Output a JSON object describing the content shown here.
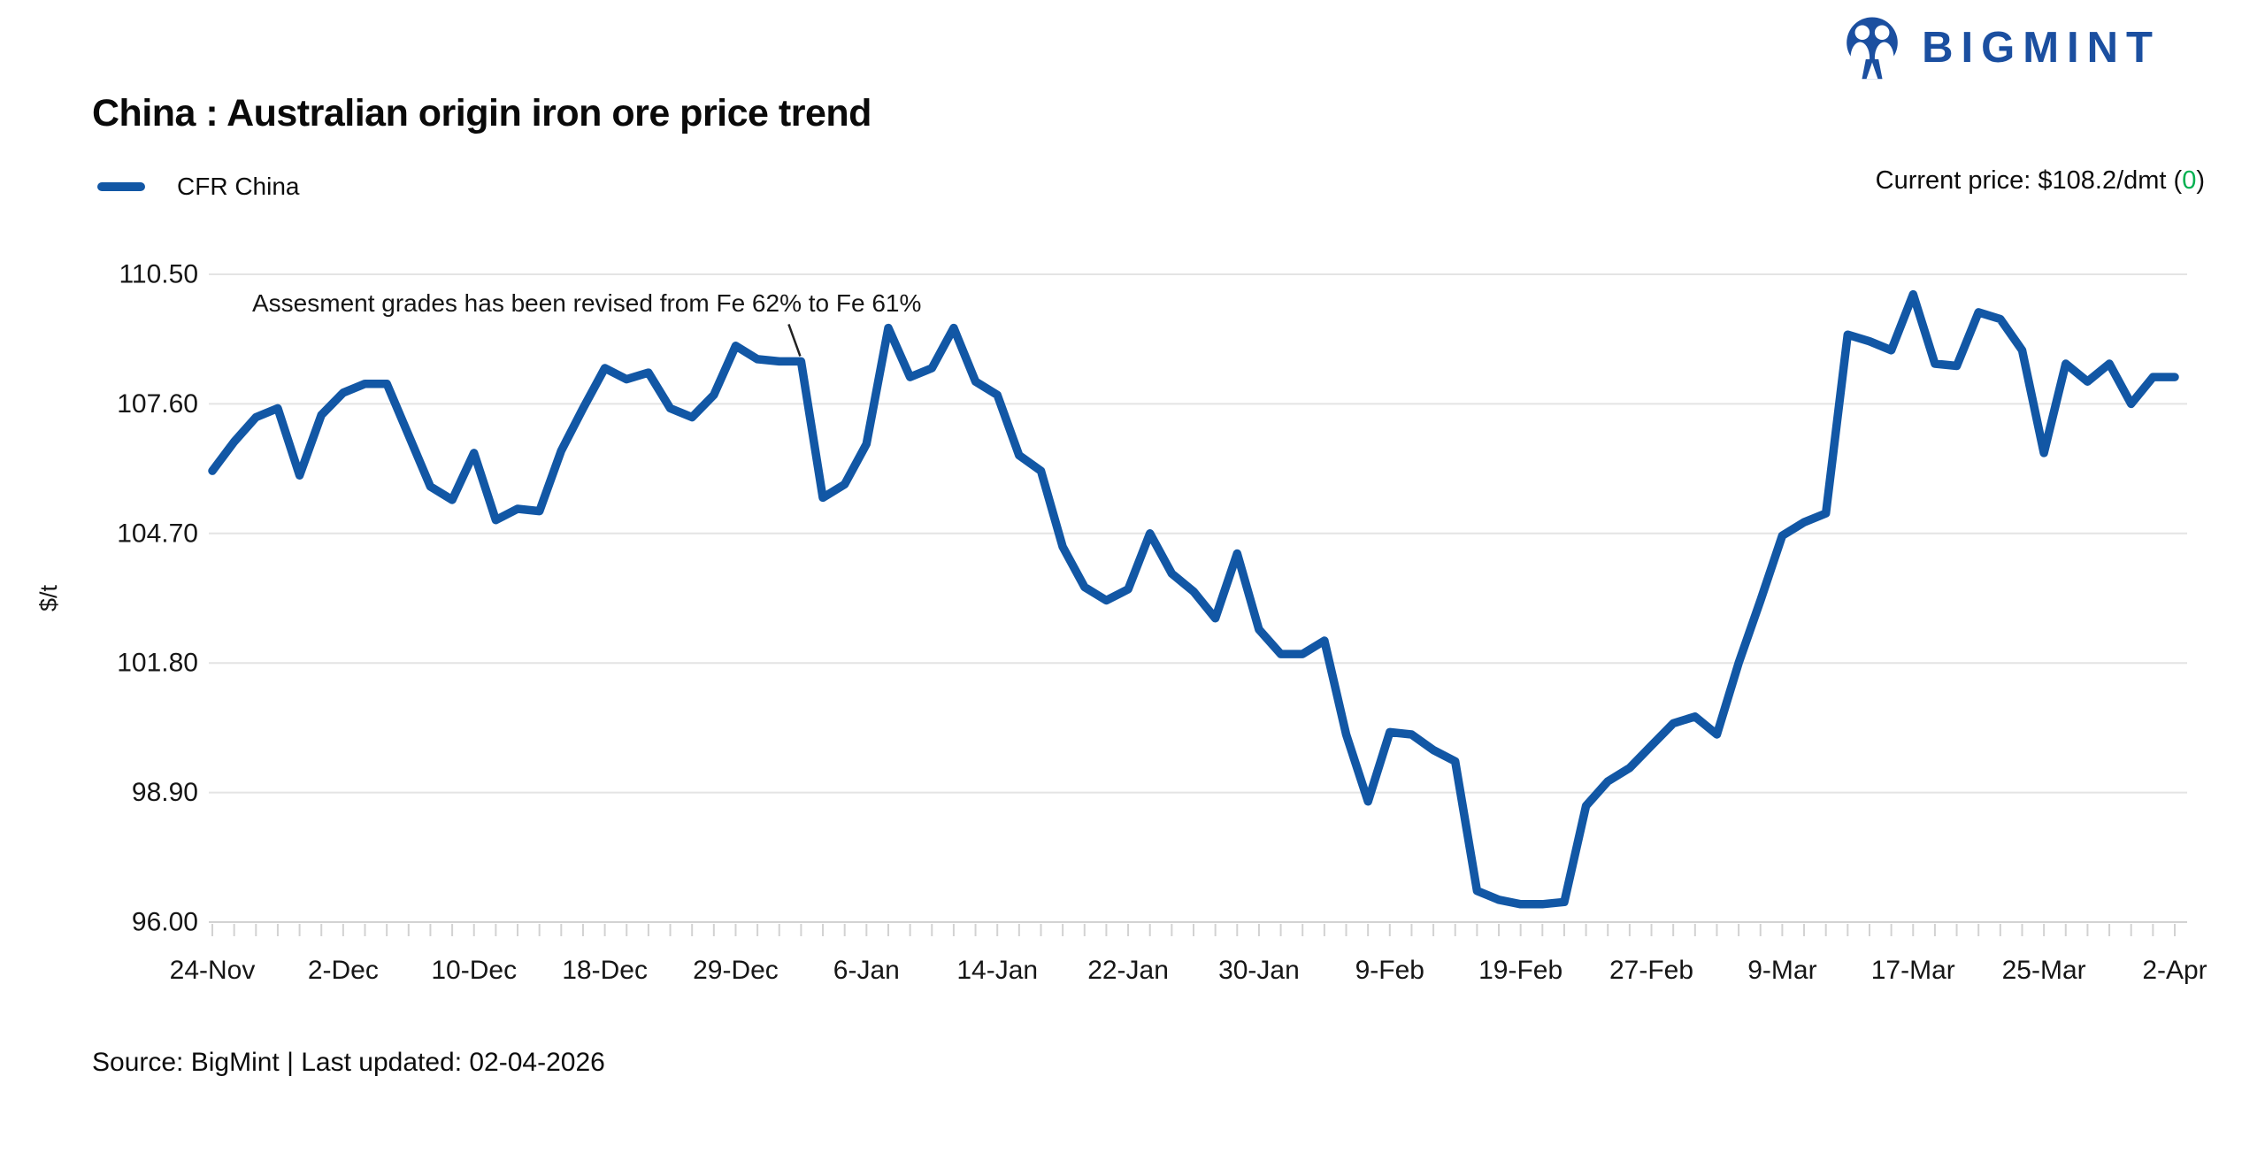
{
  "header": {
    "title": "China : Australian origin iron ore price trend",
    "brand": "BIGMINT",
    "legend_label": "CFR China",
    "current_price_prefix": "Current price: $108.2/dmt (",
    "current_price_change": "0",
    "current_price_suffix": ")"
  },
  "footer": {
    "source": "Source: BigMint | Last updated: 02-04-2026"
  },
  "colors": {
    "line": "#1257A5",
    "brand_blue": "#1B4FA0",
    "positive_green": "#00B050",
    "gridline": "#E4E4E4",
    "axis": "#D2D2D2",
    "annotation": "#222222",
    "text": "#111111"
  },
  "chart_data": {
    "type": "line",
    "title": "China : Australian origin iron ore price trend",
    "series_name": "CFR China",
    "ylabel": "$/t",
    "ylim": [
      96.0,
      110.5
    ],
    "yticks": [
      110.5,
      107.6,
      104.7,
      101.8,
      98.9,
      96.0
    ],
    "ytick_labels": [
      "110.50",
      "107.60",
      "104.70",
      "101.80",
      "98.90",
      "96.00"
    ],
    "x_labels": [
      "24-Nov",
      "2-Dec",
      "10-Dec",
      "18-Dec",
      "29-Dec",
      "6-Jan",
      "14-Jan",
      "22-Jan",
      "30-Jan",
      "9-Feb",
      "19-Feb",
      "27-Feb",
      "9-Mar",
      "17-Mar",
      "25-Mar",
      "2-Apr"
    ],
    "label_every": 6,
    "grid": "horizontal",
    "legend_position": "top-left",
    "values": [
      106.1,
      106.75,
      107.3,
      107.5,
      106.0,
      107.35,
      107.85,
      108.05,
      108.05,
      106.9,
      105.75,
      105.45,
      106.5,
      105.0,
      105.25,
      105.2,
      106.55,
      107.5,
      108.4,
      108.15,
      108.3,
      107.5,
      107.3,
      107.8,
      108.9,
      108.6,
      108.55,
      108.55,
      105.5,
      105.8,
      106.7,
      109.3,
      108.2,
      108.4,
      109.3,
      108.1,
      107.8,
      106.45,
      106.1,
      104.4,
      103.5,
      103.2,
      103.45,
      104.7,
      103.8,
      103.4,
      102.8,
      104.25,
      102.55,
      102.0,
      102.0,
      102.3,
      100.2,
      98.7,
      100.25,
      100.2,
      99.85,
      99.6,
      96.7,
      96.5,
      96.4,
      96.4,
      96.45,
      98.6,
      99.15,
      99.45,
      99.95,
      100.45,
      100.6,
      100.2,
      101.8,
      103.2,
      104.65,
      104.95,
      105.15,
      109.15,
      109.0,
      108.8,
      110.05,
      108.5,
      108.45,
      109.65,
      109.5,
      108.8,
      106.5,
      108.5,
      108.1,
      108.5,
      107.6,
      108.2,
      108.2
    ],
    "annotation": {
      "text": "Assesment grades has been revised from Fe 62% to Fe 61%",
      "point_index": 27
    }
  }
}
